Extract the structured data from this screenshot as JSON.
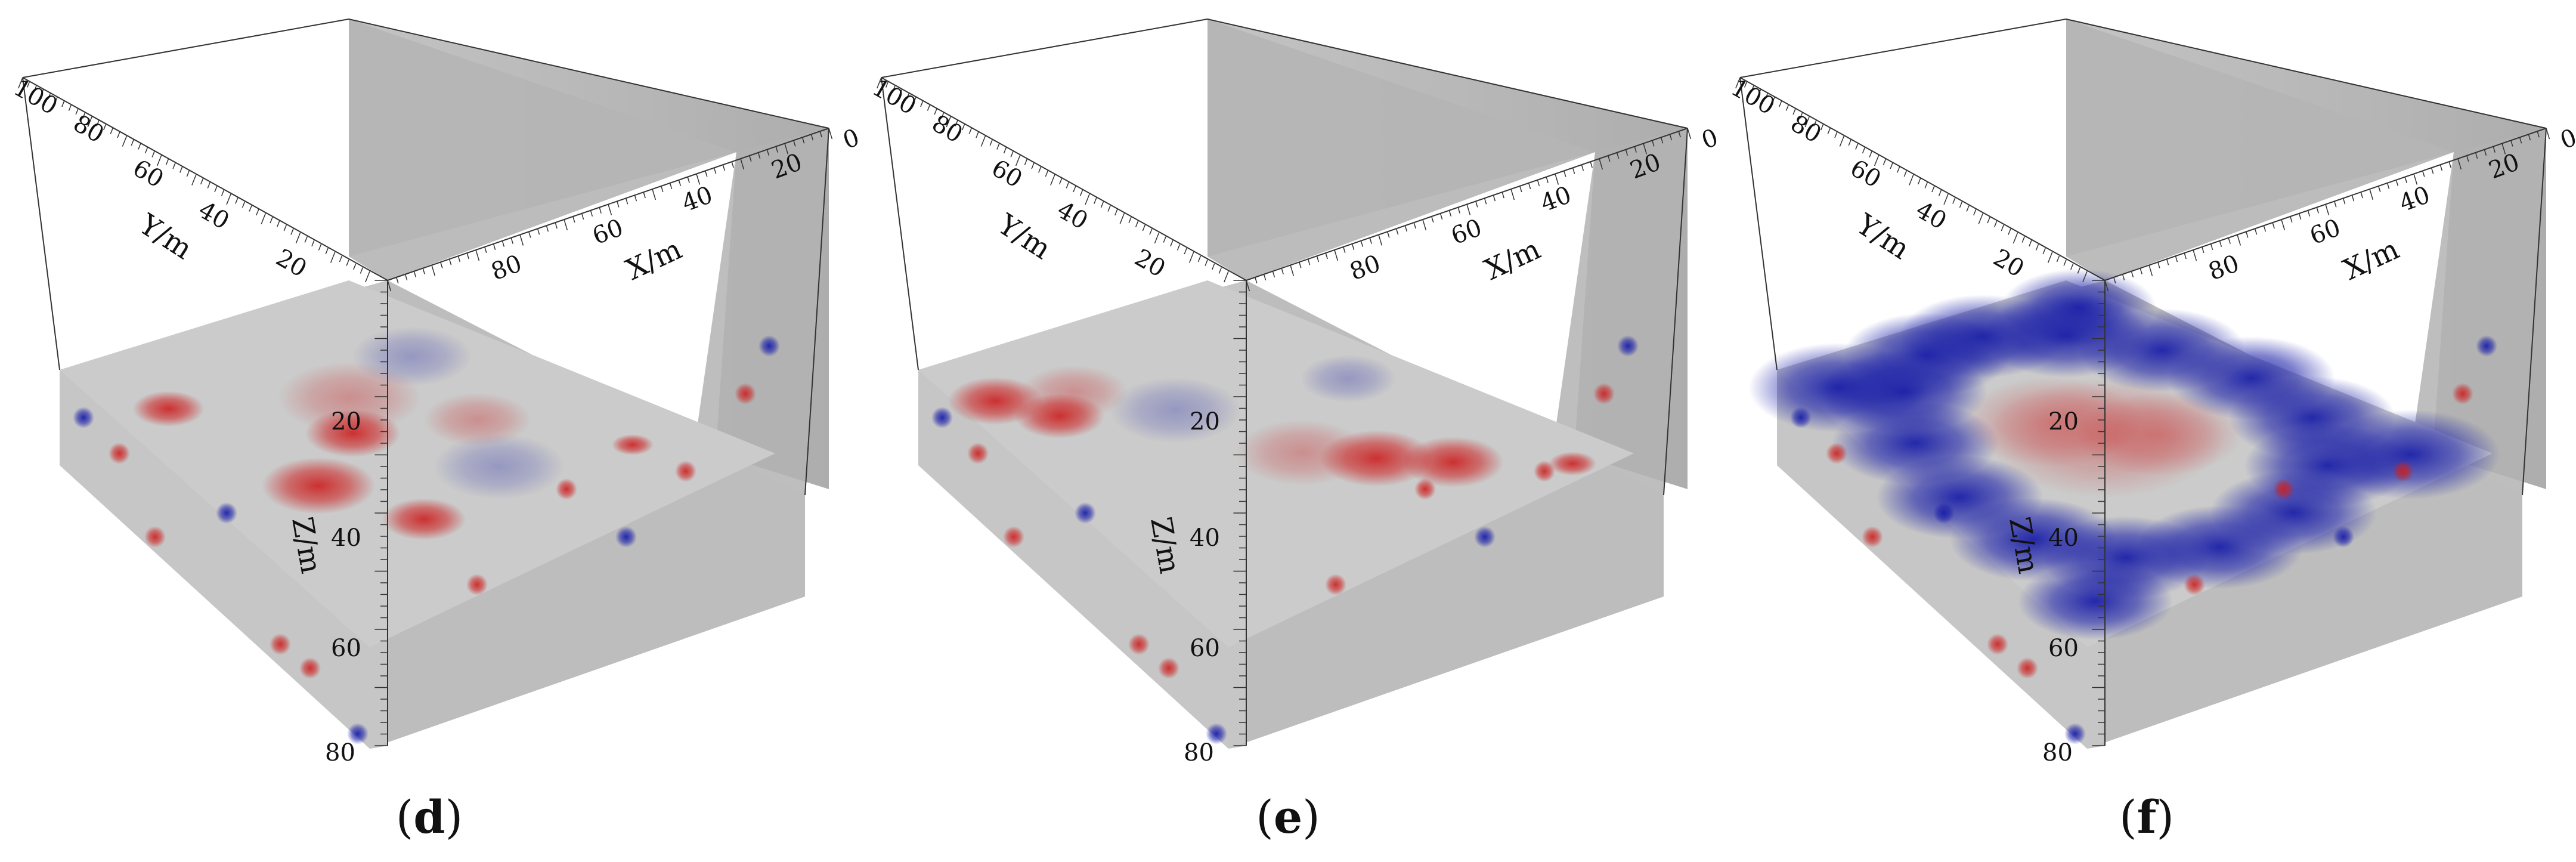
{
  "panels": [
    {
      "id": "d",
      "caption_open": "(",
      "caption_letter": "d",
      "caption_close": ")",
      "slice_mode": "horizontal-mixed"
    },
    {
      "id": "e",
      "caption_open": "(",
      "caption_letter": "e",
      "caption_close": ")",
      "slice_mode": "horizontal-red-bands"
    },
    {
      "id": "f",
      "caption_open": "(",
      "caption_letter": "f",
      "caption_close": ")",
      "slice_mode": "horizontal-blue-ring"
    }
  ],
  "axes": {
    "y": {
      "label": "Y/m",
      "ticks": [
        "100",
        "80",
        "60",
        "40",
        "20"
      ]
    },
    "x": {
      "label": "X/m",
      "ticks": [
        "80",
        "60",
        "40",
        "20",
        "0"
      ]
    },
    "z": {
      "label": "Z/m",
      "ticks": [
        "20",
        "40",
        "60",
        "80"
      ]
    }
  },
  "colors": {
    "positive_anomaly": "#cc1f1f",
    "negative_anomaly": "#1a1fa8",
    "background_volume": "#c8c8c8",
    "wall": "#a9a9a9"
  }
}
